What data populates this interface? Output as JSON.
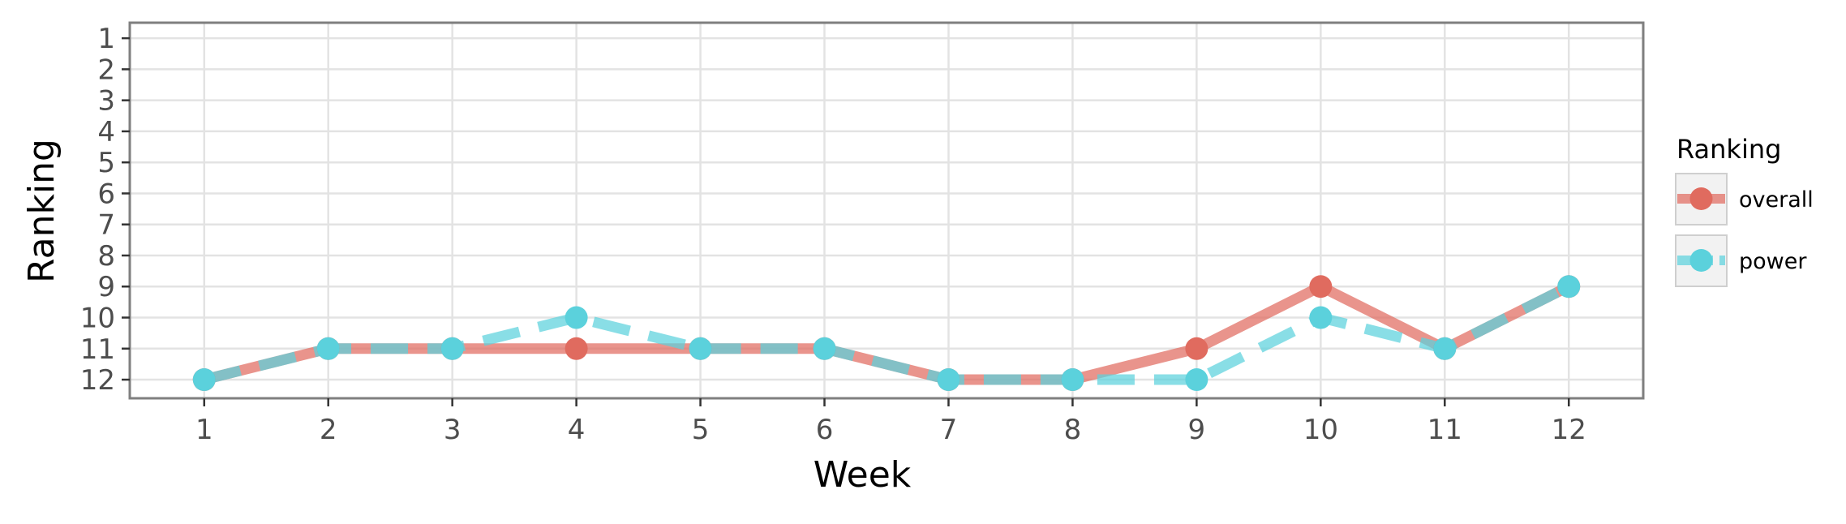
{
  "chart_data": {
    "type": "line",
    "title": "",
    "xlabel": "Week",
    "ylabel": "Ranking",
    "x": [
      1,
      2,
      3,
      4,
      5,
      6,
      7,
      8,
      9,
      10,
      11,
      12
    ],
    "x_ticks": [
      "1",
      "2",
      "3",
      "4",
      "5",
      "6",
      "7",
      "8",
      "9",
      "10",
      "11",
      "12"
    ],
    "y_ticks": [
      "1",
      "2",
      "3",
      "4",
      "5",
      "6",
      "7",
      "8",
      "9",
      "10",
      "11",
      "12"
    ],
    "xlim": [
      0.4,
      12.6
    ],
    "ylim": [
      12.6,
      0.5
    ],
    "y_reversed": true,
    "grid": true,
    "legend": {
      "title": "Ranking",
      "placement": "right"
    },
    "series": [
      {
        "name": "overall",
        "values": [
          12,
          11,
          11,
          11,
          11,
          11,
          12,
          12,
          11,
          9,
          11,
          9
        ],
        "color": "#E06B5F",
        "line_style": "solid"
      },
      {
        "name": "power",
        "values": [
          12,
          11,
          11,
          10,
          11,
          11,
          12,
          12,
          12,
          10,
          11,
          9
        ],
        "color": "#5BD1DC",
        "line_style": "dashed"
      }
    ]
  },
  "colors": {
    "grid": "#e3e3e3",
    "panel_border": "#7f7f7f",
    "tick_text": "#4d4d4d",
    "axis_title": "#000000"
  }
}
